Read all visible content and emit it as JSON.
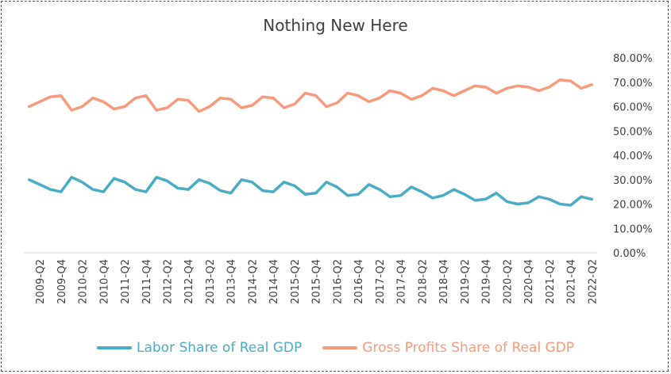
{
  "chart_data": {
    "type": "line",
    "title": "Nothing New Here",
    "xlabel": "",
    "ylabel": "",
    "ylim": [
      0,
      0.8
    ],
    "y_ticks": [
      "0.00%",
      "10.00%",
      "20.00%",
      "30.00%",
      "40.00%",
      "50.00%",
      "60.00%",
      "70.00%",
      "80.00%"
    ],
    "y_axis_side": "right",
    "grid": false,
    "legend_position": "bottom",
    "categories": [
      "2009-Q1",
      "2009-Q2",
      "2009-Q3",
      "2009-Q4",
      "2010-Q1",
      "2010-Q2",
      "2010-Q3",
      "2010-Q4",
      "2011-Q1",
      "2011-Q2",
      "2011-Q3",
      "2011-Q4",
      "2012-Q1",
      "2012-Q2",
      "2012-Q3",
      "2012-Q4",
      "2013-Q1",
      "2013-Q2",
      "2013-Q3",
      "2013-Q4",
      "2014-Q1",
      "2014-Q2",
      "2014-Q3",
      "2014-Q4",
      "2015-Q1",
      "2015-Q2",
      "2015-Q3",
      "2015-Q4",
      "2016-Q1",
      "2016-Q2",
      "2016-Q3",
      "2016-Q4",
      "2017-Q1",
      "2017-Q2",
      "2017-Q3",
      "2017-Q4",
      "2018-Q1",
      "2018-Q2",
      "2018-Q3",
      "2018-Q4",
      "2019-Q1",
      "2019-Q2",
      "2019-Q3",
      "2019-Q4",
      "2020-Q1",
      "2020-Q2",
      "2020-Q3",
      "2020-Q4",
      "2021-Q1",
      "2021-Q2",
      "2021-Q3",
      "2021-Q4",
      "2022-Q1",
      "2022-Q2"
    ],
    "visible_tick_labels": [
      "2009-Q2",
      "2009-Q4",
      "2010-Q2",
      "2010-Q4",
      "2011-Q2",
      "2011-Q4",
      "2012-Q2",
      "2012-Q4",
      "2013-Q2",
      "2013-Q4",
      "2014-Q2",
      "2014-Q4",
      "2015-Q2",
      "2015-Q4",
      "2016-Q2",
      "2016-Q4",
      "2017-Q2",
      "2017-Q4",
      "2018-Q2",
      "2018-Q4",
      "2019-Q2",
      "2019-Q4",
      "2020-Q2",
      "2020-Q4",
      "2021-Q2",
      "2021-Q4",
      "2022-Q2"
    ],
    "series": [
      {
        "name": "Labor Share of Real GDP",
        "color": "#4BACC6",
        "values": [
          0.3,
          0.28,
          0.26,
          0.25,
          0.31,
          0.29,
          0.26,
          0.25,
          0.305,
          0.29,
          0.26,
          0.25,
          0.31,
          0.295,
          0.265,
          0.26,
          0.3,
          0.285,
          0.255,
          0.245,
          0.3,
          0.29,
          0.255,
          0.25,
          0.29,
          0.275,
          0.24,
          0.245,
          0.29,
          0.27,
          0.235,
          0.24,
          0.28,
          0.26,
          0.23,
          0.235,
          0.27,
          0.25,
          0.225,
          0.235,
          0.26,
          0.24,
          0.215,
          0.22,
          0.245,
          0.21,
          0.2,
          0.205,
          0.23,
          0.22,
          0.2,
          0.195,
          0.23,
          0.22
        ]
      },
      {
        "name": "Gross Profits Share of Real GDP",
        "color": "#F79B7C",
        "values": [
          0.6,
          0.62,
          0.64,
          0.645,
          0.585,
          0.6,
          0.635,
          0.62,
          0.59,
          0.6,
          0.635,
          0.645,
          0.585,
          0.595,
          0.63,
          0.625,
          0.58,
          0.6,
          0.635,
          0.63,
          0.595,
          0.605,
          0.64,
          0.635,
          0.595,
          0.61,
          0.655,
          0.645,
          0.6,
          0.615,
          0.655,
          0.645,
          0.62,
          0.635,
          0.665,
          0.655,
          0.63,
          0.645,
          0.675,
          0.665,
          0.645,
          0.665,
          0.685,
          0.68,
          0.655,
          0.675,
          0.685,
          0.68,
          0.665,
          0.68,
          0.71,
          0.705,
          0.675,
          0.69
        ]
      }
    ]
  }
}
